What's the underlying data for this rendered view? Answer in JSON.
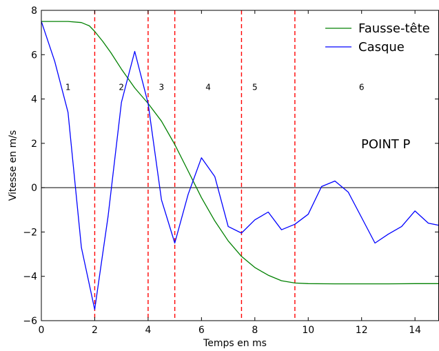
{
  "chart_data": {
    "type": "line",
    "xlabel": "Temps en ms",
    "ylabel": "Vitesse en m/s",
    "xlim": [
      0,
      14.9
    ],
    "ylim": [
      -6,
      8
    ],
    "xticks": [
      0,
      2,
      4,
      6,
      8,
      10,
      12,
      14
    ],
    "yticks": [
      -6,
      -4,
      -2,
      0,
      2,
      4,
      6,
      8
    ],
    "ytick_labels": [
      "−6",
      "−4",
      "−2",
      "0",
      "2",
      "4",
      "6",
      "8"
    ],
    "legend": "top-right",
    "grid": false,
    "annotation": "POINT P",
    "zero_line": 0,
    "vlines": [
      2,
      4,
      5,
      7.5,
      9.5
    ],
    "zones": [
      {
        "label": "1",
        "x": 1.0,
        "y": 4.4
      },
      {
        "label": "2",
        "x": 3.0,
        "y": 4.4
      },
      {
        "label": "3",
        "x": 4.5,
        "y": 4.4
      },
      {
        "label": "4",
        "x": 6.25,
        "y": 4.4
      },
      {
        "label": "5",
        "x": 8.0,
        "y": 4.4
      },
      {
        "label": "6",
        "x": 12.0,
        "y": 4.4
      }
    ],
    "series": [
      {
        "name": "Fausse-tête",
        "color": "#008000",
        "x": [
          0,
          0.5,
          1.0,
          1.5,
          1.8,
          2.0,
          2.3,
          2.6,
          3.0,
          3.5,
          4.0,
          4.5,
          5.0,
          5.5,
          6.0,
          6.5,
          7.0,
          7.5,
          8.0,
          8.5,
          9.0,
          9.5,
          10.0,
          11.0,
          12.0,
          13.0,
          14.0,
          14.9
        ],
        "y": [
          7.5,
          7.5,
          7.5,
          7.45,
          7.3,
          7.05,
          6.6,
          6.1,
          5.35,
          4.5,
          3.8,
          3.0,
          1.95,
          0.75,
          -0.45,
          -1.5,
          -2.4,
          -3.1,
          -3.6,
          -3.95,
          -4.2,
          -4.3,
          -4.33,
          -4.34,
          -4.34,
          -4.34,
          -4.33,
          -4.33
        ]
      },
      {
        "name": "Casque",
        "color": "#0000ff",
        "x": [
          0,
          0.5,
          1.0,
          1.5,
          2.0,
          2.5,
          3.0,
          3.5,
          4.0,
          4.5,
          5.0,
          5.5,
          6.0,
          6.5,
          7.0,
          7.5,
          8.0,
          8.5,
          9.0,
          9.5,
          10.0,
          10.5,
          11.0,
          11.5,
          12.0,
          12.5,
          13.0,
          13.5,
          14.0,
          14.5,
          14.9
        ],
        "y": [
          7.5,
          5.7,
          3.4,
          -2.7,
          -5.5,
          -1.3,
          3.85,
          6.15,
          3.8,
          -0.55,
          -2.5,
          -0.3,
          1.35,
          0.5,
          -1.75,
          -2.05,
          -1.45,
          -1.1,
          -1.9,
          -1.65,
          -1.2,
          0.05,
          0.3,
          -0.2,
          -1.35,
          -2.5,
          -2.1,
          -1.75,
          -1.05,
          -1.6,
          -1.7
        ]
      }
    ]
  }
}
